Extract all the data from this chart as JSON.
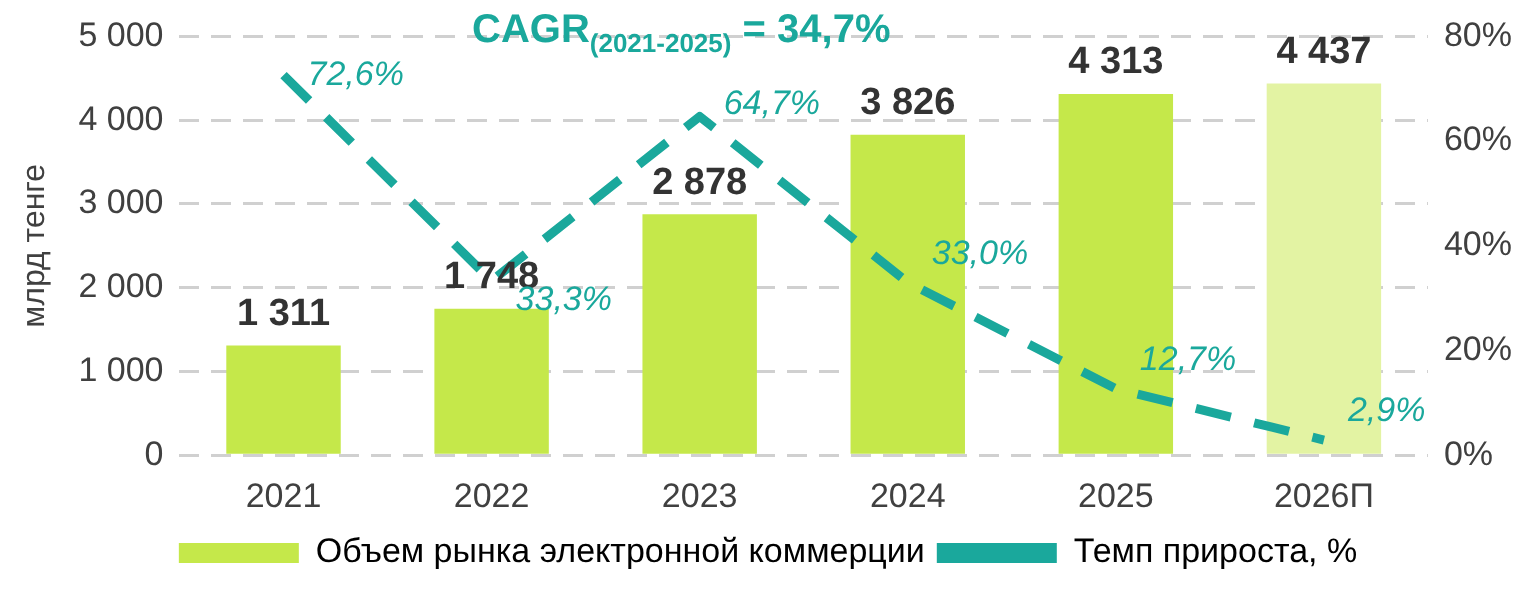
{
  "chart_data": {
    "type": "bar",
    "title": "CAGR$_{(2021-2025)}$ = 34,7%",
    "ylabel": "млрд тенге",
    "categories": [
      "2021",
      "2022",
      "2023",
      "2024",
      "2025",
      "2026П"
    ],
    "series": [
      {
        "name": "Объем рынка электронной коммерции",
        "colors": [
          "#c5e84a",
          "#c5e84a",
          "#c5e84a",
          "#c5e84a",
          "#c5e84a",
          "#e3f3a3"
        ],
        "values": [
          1311,
          1748,
          2878,
          3826,
          4313,
          4437
        ],
        "value_labels": [
          "1 311",
          "1 748",
          "2 878",
          "3 826",
          "4 313",
          "4 437"
        ]
      },
      {
        "name": "Темп прироста, %",
        "type": "line",
        "axis": "y2",
        "color": "#1aa89c",
        "line_style": "dashed",
        "marker": "none",
        "values": [
          72.6,
          33.3,
          64.7,
          33.0,
          12.7,
          2.9
        ],
        "value_labels": [
          "72,6%",
          "33,3%",
          "64,7%",
          "33,0%",
          "12,7%",
          "2,9%"
        ]
      }
    ],
    "ylim": [
      0,
      5000
    ],
    "yticks": [
      {
        "value": 0,
        "label": "0"
      },
      {
        "value": 1000,
        "label": "1 000"
      },
      {
        "value": 2000,
        "label": "2 000"
      },
      {
        "value": 3000,
        "label": "3 000"
      },
      {
        "value": 4000,
        "label": "4 000"
      },
      {
        "value": 5000,
        "label": "5 000"
      }
    ],
    "y2lim": [
      0,
      80
    ],
    "y2ticks": [
      {
        "value": 0,
        "label": "0%"
      },
      {
        "value": 20,
        "label": "20%"
      },
      {
        "value": 40,
        "label": "40%"
      },
      {
        "value": 60,
        "label": "60%"
      },
      {
        "value": 80,
        "label": "80%"
      }
    ],
    "grid": "y",
    "legend": "bottom"
  }
}
